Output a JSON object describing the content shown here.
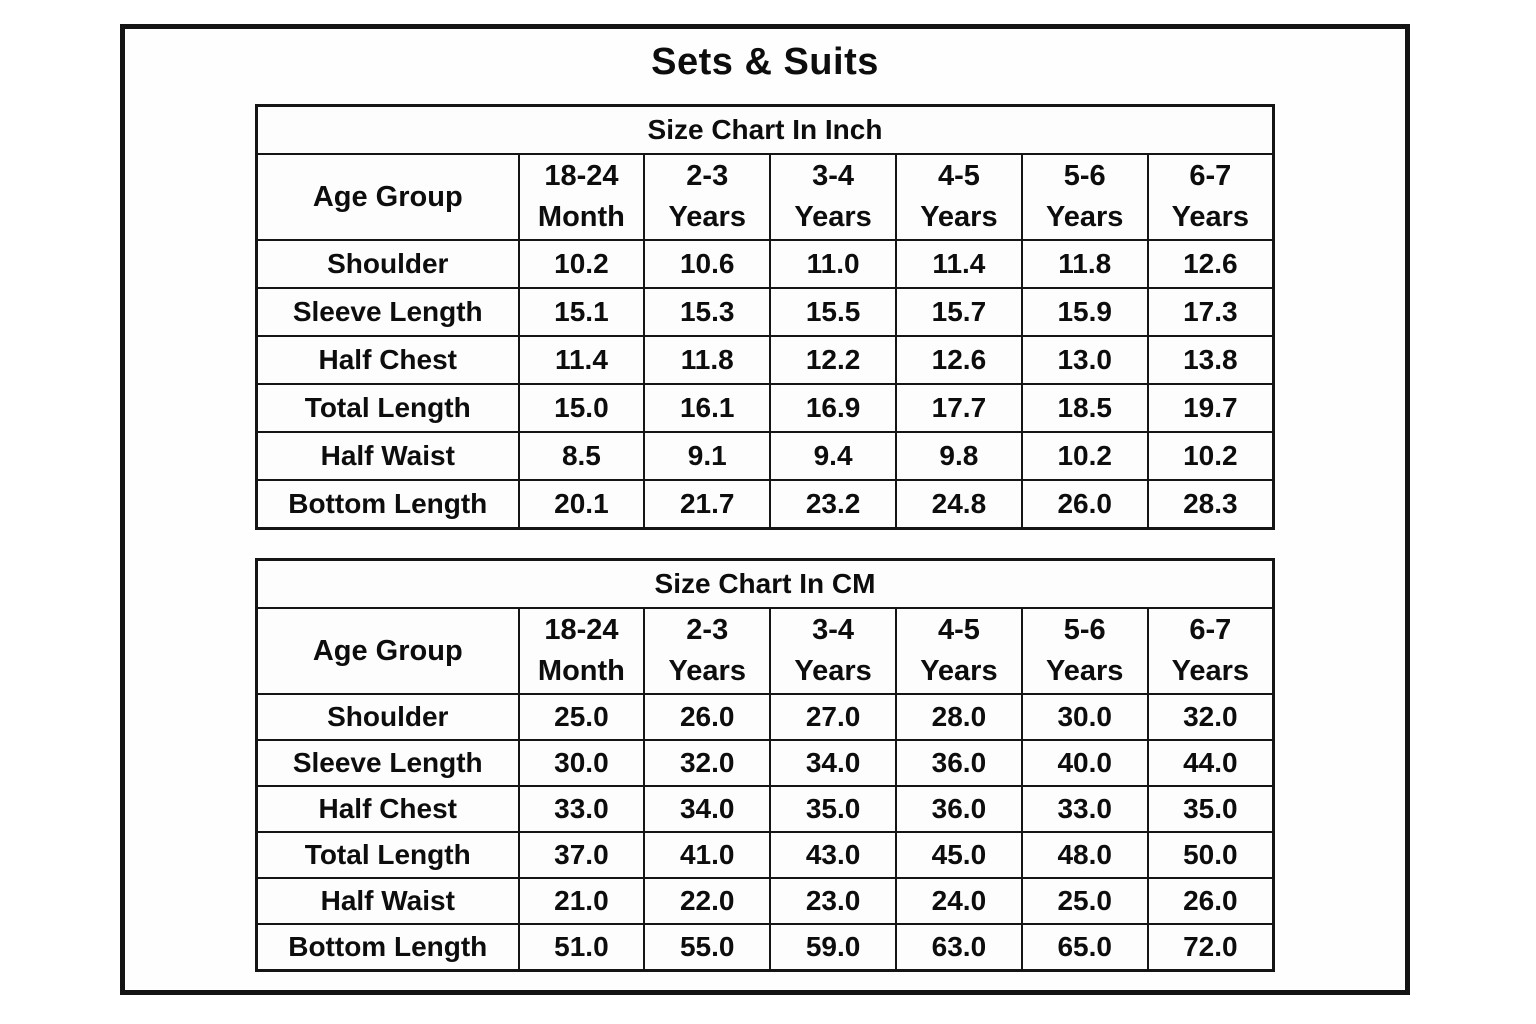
{
  "page_title": "Sets & Suits",
  "colors": {
    "background": "#ffffff",
    "border": "#151515",
    "text": "#0d0d0d"
  },
  "tables": [
    {
      "title": "Size Chart In Inch",
      "header_col": "Age Group",
      "columns": [
        [
          "18-24",
          "Month"
        ],
        [
          "2-3",
          "Years"
        ],
        [
          "3-4",
          "Years"
        ],
        [
          "4-5",
          "Years"
        ],
        [
          "5-6",
          "Years"
        ],
        [
          "6-7",
          "Years"
        ]
      ],
      "rows": [
        {
          "label": "Shoulder",
          "values": [
            "10.2",
            "10.6",
            "11.0",
            "11.4",
            "11.8",
            "12.6"
          ]
        },
        {
          "label": "Sleeve Length",
          "values": [
            "15.1",
            "15.3",
            "15.5",
            "15.7",
            "15.9",
            "17.3"
          ]
        },
        {
          "label": "Half Chest",
          "values": [
            "11.4",
            "11.8",
            "12.2",
            "12.6",
            "13.0",
            "13.8"
          ]
        },
        {
          "label": "Total Length",
          "values": [
            "15.0",
            "16.1",
            "16.9",
            "17.7",
            "18.5",
            "19.7"
          ]
        },
        {
          "label": "Half Waist",
          "values": [
            "8.5",
            "9.1",
            "9.4",
            "9.8",
            "10.2",
            "10.2"
          ]
        },
        {
          "label": "Bottom Length",
          "values": [
            "20.1",
            "21.7",
            "23.2",
            "24.8",
            "26.0",
            "28.3"
          ]
        }
      ]
    },
    {
      "title": "Size Chart In CM",
      "header_col": "Age Group",
      "columns": [
        [
          "18-24",
          "Month"
        ],
        [
          "2-3",
          "Years"
        ],
        [
          "3-4",
          "Years"
        ],
        [
          "4-5",
          "Years"
        ],
        [
          "5-6",
          "Years"
        ],
        [
          "6-7",
          "Years"
        ]
      ],
      "rows": [
        {
          "label": "Shoulder",
          "values": [
            "25.0",
            "26.0",
            "27.0",
            "28.0",
            "30.0",
            "32.0"
          ]
        },
        {
          "label": "Sleeve Length",
          "values": [
            "30.0",
            "32.0",
            "34.0",
            "36.0",
            "40.0",
            "44.0"
          ]
        },
        {
          "label": "Half Chest",
          "values": [
            "33.0",
            "34.0",
            "35.0",
            "36.0",
            "33.0",
            "35.0"
          ]
        },
        {
          "label": "Total Length",
          "values": [
            "37.0",
            "41.0",
            "43.0",
            "45.0",
            "48.0",
            "50.0"
          ]
        },
        {
          "label": "Half Waist",
          "values": [
            "21.0",
            "22.0",
            "23.0",
            "24.0",
            "25.0",
            "26.0"
          ]
        },
        {
          "label": "Bottom Length",
          "values": [
            "51.0",
            "55.0",
            "59.0",
            "63.0",
            "65.0",
            "72.0"
          ]
        }
      ]
    }
  ],
  "chart_data": [
    {
      "type": "table",
      "title": "Size Chart In Inch",
      "columns": [
        "Age Group",
        "18-24 Month",
        "2-3 Years",
        "3-4 Years",
        "4-5 Years",
        "5-6 Years",
        "6-7 Years"
      ],
      "rows": [
        [
          "Shoulder",
          10.2,
          10.6,
          11.0,
          11.4,
          11.8,
          12.6
        ],
        [
          "Sleeve Length",
          15.1,
          15.3,
          15.5,
          15.7,
          15.9,
          17.3
        ],
        [
          "Half Chest",
          11.4,
          11.8,
          12.2,
          12.6,
          13.0,
          13.8
        ],
        [
          "Total Length",
          15.0,
          16.1,
          16.9,
          17.7,
          18.5,
          19.7
        ],
        [
          "Half Waist",
          8.5,
          9.1,
          9.4,
          9.8,
          10.2,
          10.2
        ],
        [
          "Bottom Length",
          20.1,
          21.7,
          23.2,
          24.8,
          26.0,
          28.3
        ]
      ]
    },
    {
      "type": "table",
      "title": "Size Chart In CM",
      "columns": [
        "Age Group",
        "18-24 Month",
        "2-3 Years",
        "3-4 Years",
        "4-5 Years",
        "5-6 Years",
        "6-7 Years"
      ],
      "rows": [
        [
          "Shoulder",
          25.0,
          26.0,
          27.0,
          28.0,
          30.0,
          32.0
        ],
        [
          "Sleeve Length",
          30.0,
          32.0,
          34.0,
          36.0,
          40.0,
          44.0
        ],
        [
          "Half Chest",
          33.0,
          34.0,
          35.0,
          36.0,
          33.0,
          35.0
        ],
        [
          "Total Length",
          37.0,
          41.0,
          43.0,
          45.0,
          48.0,
          50.0
        ],
        [
          "Half Waist",
          21.0,
          22.0,
          23.0,
          24.0,
          25.0,
          26.0
        ],
        [
          "Bottom Length",
          51.0,
          55.0,
          59.0,
          63.0,
          65.0,
          72.0
        ]
      ]
    }
  ]
}
